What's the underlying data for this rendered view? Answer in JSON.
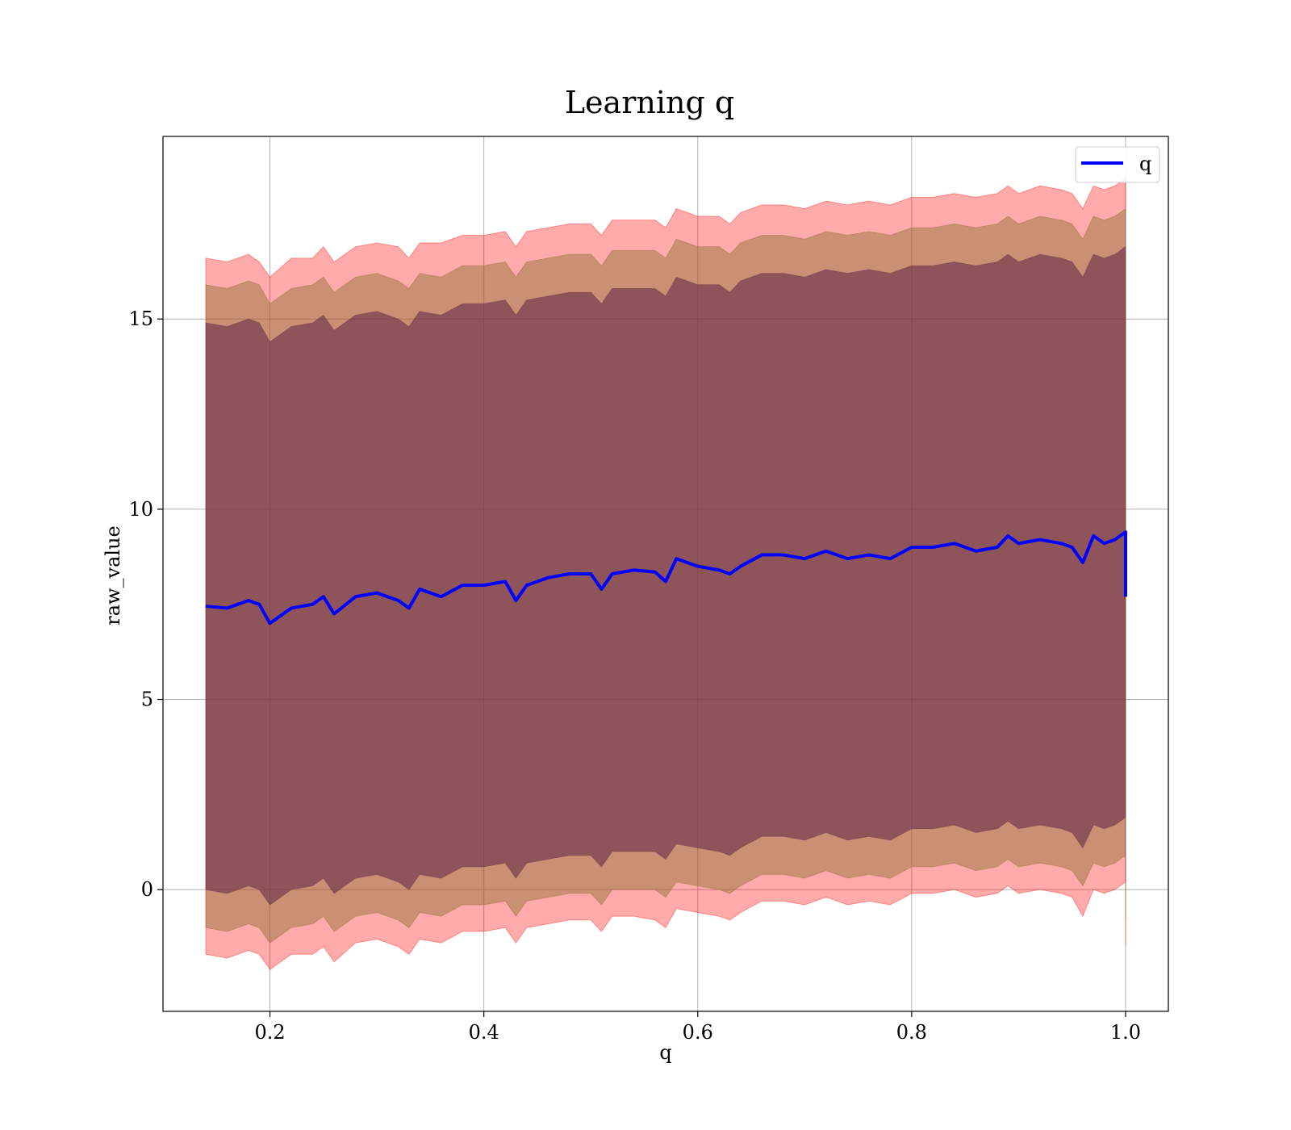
{
  "chart_data": {
    "type": "area",
    "title": "Learning q",
    "xlabel": "q",
    "ylabel": "raw_value",
    "xlim": [
      0.1,
      1.04
    ],
    "ylim": [
      -3.2,
      19.8
    ],
    "x_ticks": [
      0.2,
      0.4,
      0.6,
      0.8,
      1.0
    ],
    "x_tick_labels": [
      "0.2",
      "0.4",
      "0.6",
      "0.8",
      "1.0"
    ],
    "y_ticks": [
      0,
      5,
      10,
      15
    ],
    "y_tick_labels": [
      "0",
      "5",
      "10",
      "15"
    ],
    "grid": true,
    "legend": {
      "position": "upper right",
      "entries": [
        "q"
      ]
    },
    "colors": {
      "line": "#0000ff",
      "band_outer": "#ff0000",
      "band_middle": "#8b6f2e",
      "band_inner": "#6b2e4a",
      "grid": "#b0b0b0"
    },
    "series": [
      {
        "name": "q",
        "x": [
          0.14,
          0.16,
          0.18,
          0.19,
          0.2,
          0.22,
          0.24,
          0.25,
          0.26,
          0.28,
          0.3,
          0.32,
          0.33,
          0.34,
          0.36,
          0.38,
          0.4,
          0.42,
          0.43,
          0.44,
          0.46,
          0.48,
          0.5,
          0.51,
          0.52,
          0.54,
          0.56,
          0.57,
          0.58,
          0.6,
          0.62,
          0.63,
          0.64,
          0.66,
          0.68,
          0.7,
          0.72,
          0.74,
          0.76,
          0.78,
          0.8,
          0.82,
          0.84,
          0.86,
          0.88,
          0.89,
          0.9,
          0.92,
          0.94,
          0.95,
          0.96,
          0.97,
          0.98,
          0.99,
          1.0,
          1.0
        ],
        "y": [
          7.45,
          7.4,
          7.6,
          7.5,
          7.0,
          7.4,
          7.5,
          7.7,
          7.25,
          7.7,
          7.8,
          7.6,
          7.4,
          7.9,
          7.7,
          8.0,
          8.0,
          8.1,
          7.6,
          8.0,
          8.2,
          8.3,
          8.3,
          7.9,
          8.3,
          8.4,
          8.35,
          8.1,
          8.7,
          8.5,
          8.4,
          8.3,
          8.5,
          8.8,
          8.8,
          8.7,
          8.9,
          8.7,
          8.8,
          8.7,
          9.0,
          9.0,
          9.1,
          8.9,
          9.0,
          9.3,
          9.1,
          9.2,
          9.1,
          9.0,
          8.6,
          9.3,
          9.1,
          9.2,
          9.4,
          7.7
        ],
        "band_outer_upper": [
          16.6,
          16.5,
          16.7,
          16.5,
          16.1,
          16.6,
          16.6,
          16.9,
          16.5,
          16.9,
          17.0,
          16.9,
          16.6,
          17.0,
          17.0,
          17.2,
          17.2,
          17.3,
          16.9,
          17.3,
          17.4,
          17.5,
          17.5,
          17.2,
          17.6,
          17.6,
          17.6,
          17.4,
          17.9,
          17.7,
          17.7,
          17.5,
          17.8,
          18.0,
          18.0,
          17.9,
          18.1,
          18.0,
          18.1,
          18.0,
          18.2,
          18.2,
          18.3,
          18.2,
          18.3,
          18.5,
          18.3,
          18.5,
          18.4,
          18.3,
          17.9,
          18.5,
          18.4,
          18.5,
          18.7,
          18.7
        ],
        "band_outer_lower": [
          -1.7,
          -1.8,
          -1.6,
          -1.7,
          -2.1,
          -1.7,
          -1.7,
          -1.5,
          -1.9,
          -1.4,
          -1.3,
          -1.5,
          -1.7,
          -1.3,
          -1.4,
          -1.1,
          -1.1,
          -1.0,
          -1.4,
          -1.0,
          -0.9,
          -0.8,
          -0.8,
          -1.1,
          -0.7,
          -0.7,
          -0.8,
          -1.0,
          -0.5,
          -0.6,
          -0.7,
          -0.8,
          -0.6,
          -0.3,
          -0.3,
          -0.4,
          -0.2,
          -0.4,
          -0.3,
          -0.4,
          -0.1,
          -0.1,
          0.0,
          -0.2,
          -0.1,
          0.1,
          -0.1,
          0.0,
          -0.1,
          -0.2,
          -0.7,
          0.0,
          -0.1,
          0.0,
          0.2,
          -1.5
        ],
        "band_middle_upper": [
          15.9,
          15.8,
          16.0,
          15.9,
          15.4,
          15.8,
          15.9,
          16.1,
          15.7,
          16.1,
          16.2,
          16.0,
          15.8,
          16.2,
          16.1,
          16.4,
          16.4,
          16.5,
          16.1,
          16.5,
          16.6,
          16.7,
          16.7,
          16.4,
          16.8,
          16.8,
          16.8,
          16.6,
          17.1,
          16.9,
          16.9,
          16.7,
          17.0,
          17.2,
          17.2,
          17.1,
          17.3,
          17.2,
          17.3,
          17.2,
          17.4,
          17.4,
          17.5,
          17.4,
          17.5,
          17.7,
          17.5,
          17.7,
          17.6,
          17.5,
          17.1,
          17.7,
          17.6,
          17.7,
          17.9,
          17.9
        ],
        "band_middle_lower": [
          -1.0,
          -1.1,
          -0.9,
          -1.0,
          -1.4,
          -1.0,
          -0.9,
          -0.7,
          -1.1,
          -0.7,
          -0.6,
          -0.8,
          -1.0,
          -0.6,
          -0.7,
          -0.4,
          -0.4,
          -0.3,
          -0.7,
          -0.3,
          -0.2,
          -0.1,
          -0.1,
          -0.4,
          0.0,
          0.0,
          0.0,
          -0.2,
          0.2,
          0.1,
          0.0,
          -0.1,
          0.1,
          0.4,
          0.4,
          0.3,
          0.5,
          0.3,
          0.4,
          0.3,
          0.6,
          0.6,
          0.7,
          0.5,
          0.6,
          0.8,
          0.6,
          0.7,
          0.6,
          0.5,
          0.1,
          0.7,
          0.6,
          0.7,
          0.9,
          -0.8
        ],
        "band_inner_upper": [
          14.9,
          14.8,
          15.0,
          14.9,
          14.4,
          14.8,
          14.9,
          15.1,
          14.7,
          15.1,
          15.2,
          15.0,
          14.8,
          15.2,
          15.1,
          15.4,
          15.4,
          15.5,
          15.1,
          15.5,
          15.6,
          15.7,
          15.7,
          15.4,
          15.8,
          15.8,
          15.8,
          15.6,
          16.1,
          15.9,
          15.9,
          15.7,
          16.0,
          16.2,
          16.2,
          16.1,
          16.3,
          16.2,
          16.3,
          16.2,
          16.4,
          16.4,
          16.5,
          16.4,
          16.5,
          16.7,
          16.5,
          16.7,
          16.6,
          16.5,
          16.1,
          16.7,
          16.6,
          16.7,
          16.9,
          16.9
        ],
        "band_inner_lower": [
          0.0,
          -0.1,
          0.1,
          0.0,
          -0.4,
          0.0,
          0.1,
          0.3,
          -0.1,
          0.3,
          0.4,
          0.2,
          0.0,
          0.4,
          0.3,
          0.6,
          0.6,
          0.7,
          0.3,
          0.7,
          0.8,
          0.9,
          0.9,
          0.6,
          1.0,
          1.0,
          1.0,
          0.8,
          1.2,
          1.1,
          1.0,
          0.9,
          1.1,
          1.4,
          1.4,
          1.3,
          1.5,
          1.3,
          1.4,
          1.3,
          1.6,
          1.6,
          1.7,
          1.5,
          1.6,
          1.8,
          1.6,
          1.7,
          1.6,
          1.5,
          1.1,
          1.7,
          1.6,
          1.7,
          1.9,
          0.2
        ]
      }
    ]
  }
}
